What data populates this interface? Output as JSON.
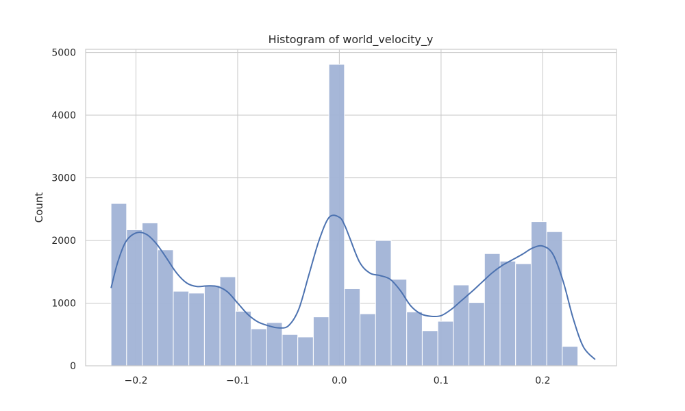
{
  "chart_data": {
    "type": "bar",
    "title": "Histogram of world_velocity_y",
    "xlabel": "",
    "ylabel": "Count",
    "xlim": [
      -0.2495,
      0.2725
    ],
    "ylim": [
      0,
      5050
    ],
    "grid": true,
    "x_ticks": [
      {
        "value": -0.2,
        "label": "−0.2"
      },
      {
        "value": -0.1,
        "label": "−0.1"
      },
      {
        "value": 0.0,
        "label": "0.0"
      },
      {
        "value": 0.1,
        "label": "0.1"
      },
      {
        "value": 0.2,
        "label": "0.2"
      }
    ],
    "y_ticks": [
      {
        "value": 0,
        "label": "0"
      },
      {
        "value": 1000,
        "label": "1000"
      },
      {
        "value": 2000,
        "label": "2000"
      },
      {
        "value": 3000,
        "label": "3000"
      },
      {
        "value": 4000,
        "label": "4000"
      },
      {
        "value": 5000,
        "label": "5000"
      }
    ],
    "bin_edges": [
      -0.2245,
      -0.2092,
      -0.1939,
      -0.1786,
      -0.1633,
      -0.148,
      -0.1327,
      -0.1174,
      -0.1021,
      -0.0868,
      -0.0715,
      -0.0562,
      -0.0409,
      -0.0256,
      -0.0103,
      0.005,
      0.0203,
      0.0356,
      0.0509,
      0.0662,
      0.0815,
      0.0968,
      0.1121,
      0.1274,
      0.1427,
      0.158,
      0.1733,
      0.1886,
      0.2039,
      0.2192,
      0.2345
    ],
    "counts": [
      2590,
      2170,
      2280,
      1850,
      1190,
      1160,
      1280,
      1420,
      870,
      590,
      690,
      500,
      460,
      780,
      4810,
      1230,
      830,
      2000,
      1380,
      860,
      560,
      710,
      1290,
      1010,
      1790,
      1670,
      1630,
      2300,
      2140,
      310
    ],
    "kde": {
      "x": [
        -0.2245,
        -0.218,
        -0.21,
        -0.2,
        -0.19,
        -0.18,
        -0.17,
        -0.16,
        -0.15,
        -0.14,
        -0.13,
        -0.12,
        -0.11,
        -0.1,
        -0.09,
        -0.08,
        -0.07,
        -0.06,
        -0.05,
        -0.04,
        -0.03,
        -0.02,
        -0.01,
        0.0,
        0.005,
        0.01,
        0.02,
        0.03,
        0.04,
        0.05,
        0.06,
        0.07,
        0.08,
        0.09,
        0.1,
        0.11,
        0.12,
        0.13,
        0.14,
        0.15,
        0.16,
        0.17,
        0.18,
        0.19,
        0.2,
        0.21,
        0.22,
        0.23,
        0.24,
        0.2515
      ],
      "y": [
        1240,
        1650,
        1980,
        2120,
        2100,
        1950,
        1720,
        1480,
        1320,
        1265,
        1275,
        1265,
        1180,
        1000,
        820,
        700,
        640,
        605,
        640,
        900,
        1450,
        2000,
        2370,
        2370,
        2250,
        2050,
        1650,
        1480,
        1440,
        1380,
        1200,
        960,
        830,
        790,
        800,
        900,
        1040,
        1180,
        1330,
        1480,
        1600,
        1690,
        1780,
        1880,
        1910,
        1780,
        1350,
        750,
        300,
        100
      ]
    },
    "colors": {
      "bar_fill": "#a1b3d6",
      "bar_stroke": "#ffffff",
      "kde_line": "#4c72b0",
      "grid": "#cccccc",
      "frame": "#cccccc",
      "text": "#262626"
    }
  }
}
